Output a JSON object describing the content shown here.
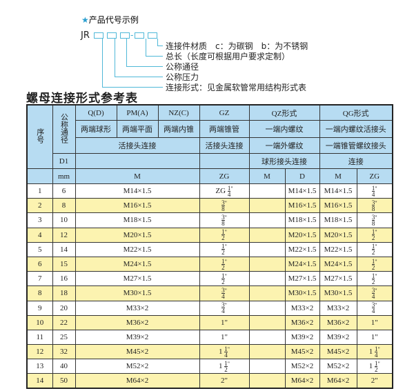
{
  "code_example": {
    "star_icon": "star-icon",
    "heading": "产品代号示例",
    "prefix": "JR",
    "legend": [
      "连接件材质　c：为碳钢　b：为不锈钢",
      "总长（长度可根据用户要求定制）",
      "公称通径",
      "公称压力",
      "连接形式：见金属软管常用结构形式表"
    ]
  },
  "title": "螺母连接形式参考表",
  "colors": {
    "header": "#b7dcf2",
    "row_alt": "#fcf3b0",
    "line": "#4fb8d8"
  },
  "header": {
    "seq": "序号",
    "dn": "公称通径",
    "d1": "D1",
    "mm": "mm",
    "q": "Q(D)",
    "pm": "PM(A)",
    "nz": "NZ(C)",
    "gz": "GZ",
    "qz": "QZ形式",
    "qg": "QG形式",
    "q2": "两端球形",
    "pm2": "两端平面",
    "nz2": "两端内锥",
    "gz2": "两端锥管",
    "qz2": "一端内螺纹",
    "qg2": "一端内螺纹活接头",
    "huo": "活接头连接",
    "gz3": "活接头连接",
    "qz3": "一端外螺纹",
    "qg3": "一端锥管螺纹接头",
    "qz4": "球形接头连接",
    "qg4": "连接",
    "m": "M",
    "zg": "ZG",
    "qz_m": "M",
    "qz_d": "D",
    "qg_m": "M",
    "qg_zg": "ZG"
  },
  "rows": [
    {
      "no": "1",
      "dn": "6",
      "m": "M14×1.5",
      "gz": {
        "pre": "ZG",
        "num": "1",
        "den": "4",
        "suf": "\""
      },
      "qz_m": "",
      "qz_d": "M14×1.5",
      "qg_m": "M14×1.5",
      "qg_zg": {
        "pre": "",
        "num": "1",
        "den": "4",
        "suf": "\""
      }
    },
    {
      "no": "2",
      "dn": "8",
      "m": "M16×1.5",
      "gz": {
        "pre": "",
        "num": "3",
        "den": "8",
        "suf": "\""
      },
      "qz_m": "",
      "qz_d": "M16×1.5",
      "qg_m": "M16×1.5",
      "qg_zg": {
        "pre": "",
        "num": "3",
        "den": "8",
        "suf": "\""
      }
    },
    {
      "no": "3",
      "dn": "10",
      "m": "M18×1.5",
      "gz": {
        "pre": "",
        "num": "3",
        "den": "8",
        "suf": "\""
      },
      "qz_m": "",
      "qz_d": "M18×1.5",
      "qg_m": "M18×1.5",
      "qg_zg": {
        "pre": "",
        "num": "3",
        "den": "8",
        "suf": "\""
      }
    },
    {
      "no": "4",
      "dn": "12",
      "m": "M20×1.5",
      "gz": {
        "pre": "",
        "num": "1",
        "den": "2",
        "suf": "\""
      },
      "qz_m": "",
      "qz_d": "M20×1.5",
      "qg_m": "M20×1.5",
      "qg_zg": {
        "pre": "",
        "num": "1",
        "den": "2",
        "suf": "\""
      }
    },
    {
      "no": "5",
      "dn": "14",
      "m": "M22×1.5",
      "gz": {
        "pre": "",
        "num": "1",
        "den": "2",
        "suf": "\""
      },
      "qz_m": "",
      "qz_d": "M22×1.5",
      "qg_m": "M22×1.5",
      "qg_zg": {
        "pre": "",
        "num": "1",
        "den": "2",
        "suf": "\""
      }
    },
    {
      "no": "6",
      "dn": "15",
      "m": "M24×1.5",
      "gz": {
        "pre": "",
        "num": "1",
        "den": "2",
        "suf": "\""
      },
      "qz_m": "",
      "qz_d": "M24×1.5",
      "qg_m": "M24×1.5",
      "qg_zg": {
        "pre": "",
        "num": "1",
        "den": "2",
        "suf": "\""
      }
    },
    {
      "no": "7",
      "dn": "16",
      "m": "M27×1.5",
      "gz": {
        "pre": "",
        "num": "1",
        "den": "2",
        "suf": "\""
      },
      "qz_m": "",
      "qz_d": "M27×1.5",
      "qg_m": "M27×1.5",
      "qg_zg": {
        "pre": "",
        "num": "1",
        "den": "2",
        "suf": "\""
      }
    },
    {
      "no": "8",
      "dn": "18",
      "m": "M30×1.5",
      "gz": {
        "pre": "",
        "num": "3",
        "den": "4",
        "suf": "\""
      },
      "qz_m": "",
      "qz_d": "M30×1.5",
      "qg_m": "M30×1.5",
      "qg_zg": {
        "pre": "",
        "num": "3",
        "den": "4",
        "suf": "\""
      }
    },
    {
      "no": "9",
      "dn": "20",
      "m": "M33×2",
      "gz": {
        "pre": "",
        "num": "3",
        "den": "4",
        "suf": "\""
      },
      "qz_m": "",
      "qz_d": "M33×2",
      "qg_m": "M33×2",
      "qg_zg": {
        "pre": "",
        "num": "3",
        "den": "4",
        "suf": "\""
      }
    },
    {
      "no": "10",
      "dn": "22",
      "m": "M36×2",
      "gz": "1\"",
      "qz_m": "",
      "qz_d": "M36×2",
      "qg_m": "M36×2",
      "qg_zg": "1\""
    },
    {
      "no": "11",
      "dn": "25",
      "m": "M39×2",
      "gz": "1\"",
      "qz_m": "",
      "qz_d": "M39×2",
      "qg_m": "M39×2",
      "qg_zg": "1\""
    },
    {
      "no": "12",
      "dn": "32",
      "m": "M45×2",
      "gz": {
        "pre": "1",
        "num": "1",
        "den": "4",
        "suf": "\""
      },
      "qz_m": "",
      "qz_d": "M45×2",
      "qg_m": "M45×2",
      "qg_zg": {
        "pre": "1",
        "num": "1",
        "den": "4",
        "suf": "\""
      }
    },
    {
      "no": "13",
      "dn": "40",
      "m": "M52×2",
      "gz": {
        "pre": "1",
        "num": "1",
        "den": "2",
        "suf": "\""
      },
      "qz_m": "",
      "qz_d": "M52×2",
      "qg_m": "M52×2",
      "qg_zg": {
        "pre": "1",
        "num": "1",
        "den": "2",
        "suf": "\""
      }
    },
    {
      "no": "14",
      "dn": "50",
      "m": "M64×2",
      "gz": "2\"",
      "qz_m": "",
      "qz_d": "M64×2",
      "qg_m": "M64×2",
      "qg_zg": "2\""
    }
  ]
}
